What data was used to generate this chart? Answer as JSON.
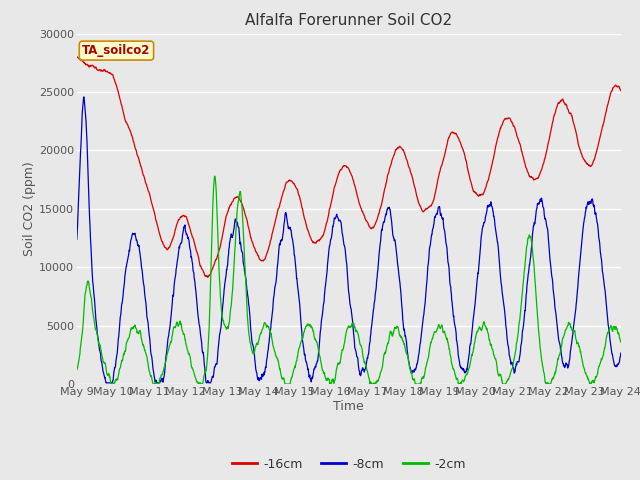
{
  "title": "Alfalfa Forerunner Soil CO2",
  "xlabel": "Time",
  "ylabel": "Soil CO2 (ppm)",
  "ylim": [
    0,
    30000
  ],
  "yticks": [
    0,
    5000,
    10000,
    15000,
    20000,
    25000,
    30000
  ],
  "x_labels": [
    "May 9",
    "May 10",
    "May 11",
    "May 12",
    "May 13",
    "May 14",
    "May 15",
    "May 16",
    "May 17",
    "May 18",
    "May 19",
    "May 20",
    "May 21",
    "May 22",
    "May 23",
    "May 24"
  ],
  "series_colors": [
    "#dd0000",
    "#0000cc",
    "#00bb00"
  ],
  "series_labels": [
    "-16cm",
    "-8cm",
    "-2cm"
  ],
  "tag_label": "TA_soilco2",
  "tag_bg": "#ffffcc",
  "tag_border": "#cc8800",
  "fig_bg": "#e8e8e8",
  "plot_bg": "#e8e8e8",
  "grid_color": "#ffffff",
  "title_color": "#333333",
  "title_fontsize": 11,
  "axis_label_fontsize": 9,
  "tick_fontsize": 8,
  "legend_fontsize": 9
}
